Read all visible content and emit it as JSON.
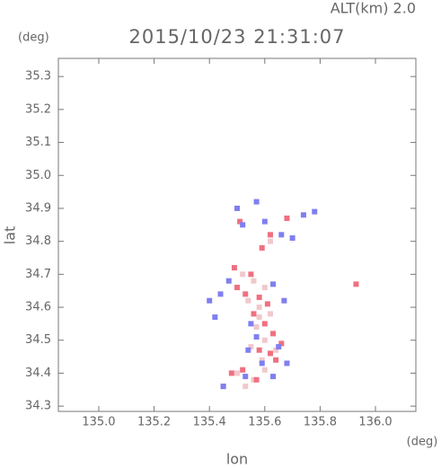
{
  "alt_label": "ALT(km) 2.0",
  "y_unit": "(deg)",
  "x_unit": "(deg)",
  "chart_data": {
    "type": "scatter",
    "title": "2015/10/23 21:31:07",
    "x_label": "lon",
    "y_label": "lat",
    "xlim": [
      134.854,
      136.146
    ],
    "ylim": [
      34.284,
      35.355
    ],
    "xticks": [
      {
        "value": 135,
        "label": "135.0"
      },
      135.2,
      135.4,
      135.6,
      135.8,
      {
        "value": 136,
        "label": "136.0"
      }
    ],
    "yticks": [
      34.3,
      34.4,
      34.5,
      34.6,
      34.7,
      34.8,
      34.9,
      {
        "value": 35,
        "label": "35.0"
      },
      35.1,
      35.2,
      35.3
    ],
    "series": [
      {
        "color": "#f0c8cc",
        "x": [
          135.52,
          135.56,
          135.6,
          135.54,
          135.58,
          135.62,
          135.57,
          135.6,
          135.55,
          135.59,
          135.5,
          135.56,
          135.6,
          135.64,
          135.58,
          135.62,
          135.53
        ],
        "values": [
          34.7,
          34.68,
          34.66,
          34.62,
          34.6,
          34.58,
          34.54,
          34.5,
          34.48,
          34.44,
          34.4,
          34.38,
          34.41,
          34.47,
          34.57,
          34.8,
          34.36
        ]
      },
      {
        "color": "#f07080",
        "x": [
          135.62,
          135.59,
          135.55,
          135.5,
          135.53,
          135.58,
          135.61,
          135.56,
          135.6,
          135.63,
          135.58,
          135.62,
          135.52,
          135.48,
          135.57,
          135.64,
          135.68,
          135.49,
          135.93,
          135.51,
          135.45,
          135.66
        ],
        "values": [
          34.82,
          34.78,
          34.7,
          34.66,
          34.64,
          34.63,
          34.61,
          34.58,
          34.55,
          34.52,
          34.47,
          34.46,
          34.41,
          34.4,
          34.38,
          34.44,
          34.87,
          34.72,
          34.67,
          34.86,
          34.36,
          34.49
        ]
      },
      {
        "color": "#7f7ff0",
        "x": [
          135.5,
          135.57,
          135.74,
          135.78,
          135.7,
          135.66,
          135.47,
          135.44,
          135.4,
          135.42,
          135.63,
          135.67,
          135.55,
          135.57,
          135.65,
          135.59,
          135.53,
          135.45,
          135.63,
          135.68,
          135.52,
          135.6,
          135.54
        ],
        "values": [
          34.9,
          34.92,
          34.88,
          34.89,
          34.81,
          34.82,
          34.68,
          34.64,
          34.62,
          34.57,
          34.67,
          34.62,
          34.55,
          34.51,
          34.48,
          34.43,
          34.39,
          34.36,
          34.39,
          34.43,
          34.85,
          34.86,
          34.47
        ]
      }
    ]
  }
}
